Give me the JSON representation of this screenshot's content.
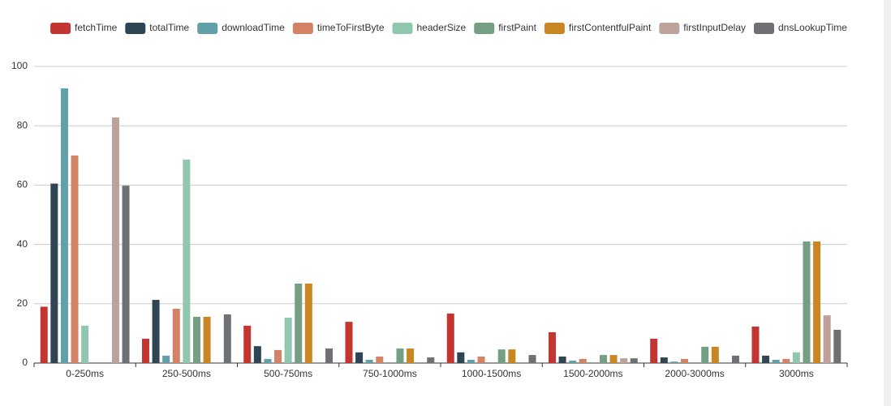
{
  "chart_data": {
    "type": "bar",
    "categories": [
      "0-250ms",
      "250-500ms",
      "500-750ms",
      "750-1000ms",
      "1000-1500ms",
      "1500-2000ms",
      "2000-3000ms",
      "3000ms"
    ],
    "series": [
      {
        "name": "fetchTime",
        "color": "#c23531",
        "values": [
          19,
          8.2,
          12.6,
          13.9,
          16.7,
          10.4,
          8.2,
          12.3
        ]
      },
      {
        "name": "totalTime",
        "color": "#2f4554",
        "values": [
          60.5,
          21.3,
          5.7,
          3.6,
          3.6,
          2.2,
          1.9,
          2.5
        ]
      },
      {
        "name": "downloadTime",
        "color": "#61a0a8",
        "values": [
          92.6,
          2.5,
          1.4,
          1.1,
          1.1,
          0.8,
          0.5,
          1.1
        ]
      },
      {
        "name": "timeToFirstByte",
        "color": "#d48265",
        "values": [
          70,
          18.3,
          4.4,
          2.2,
          2.2,
          1.4,
          1.4,
          1.4
        ]
      },
      {
        "name": "headerSize",
        "color": "#91c7ae",
        "values": [
          12.6,
          68.6,
          15.3,
          0,
          0,
          0,
          0,
          3.6
        ]
      },
      {
        "name": "firstPaint",
        "color": "#749f83",
        "values": [
          0,
          15.6,
          26.8,
          4.9,
          4.6,
          2.7,
          5.5,
          41
        ]
      },
      {
        "name": "firstContentfulPaint",
        "color": "#ca8622",
        "values": [
          0,
          15.6,
          26.8,
          4.9,
          4.6,
          2.7,
          5.5,
          41
        ]
      },
      {
        "name": "firstInputDelay",
        "color": "#bda29a",
        "values": [
          82.8,
          0,
          0,
          0,
          0,
          1.6,
          0,
          16.1
        ]
      },
      {
        "name": "dnsLookupTime",
        "color": "#6e7074",
        "values": [
          59.8,
          16.4,
          4.9,
          1.9,
          2.7,
          1.6,
          2.5,
          11.2
        ]
      }
    ],
    "ylim": [
      0,
      100
    ],
    "yticks": [
      0,
      20,
      40,
      60,
      80,
      100
    ],
    "grid": true,
    "legend": "top"
  }
}
